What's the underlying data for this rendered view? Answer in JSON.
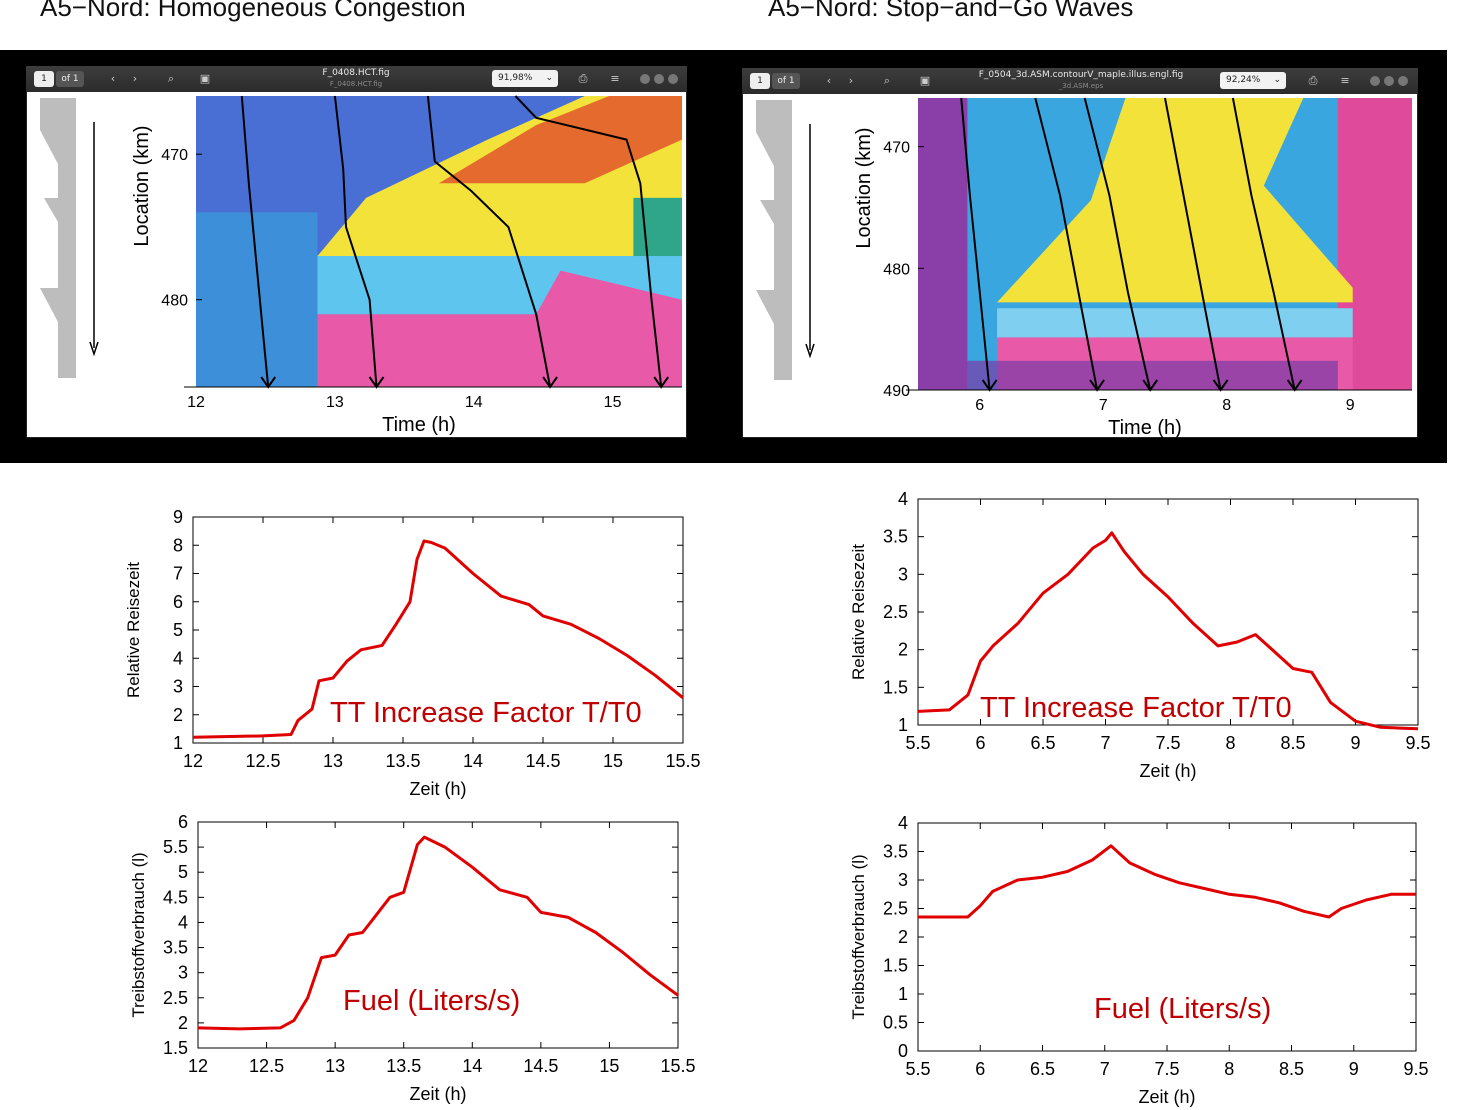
{
  "headings": {
    "left": "A5−Nord: Homogeneous Congestion",
    "right": "A5−Nord: Stop−and−Go Waves"
  },
  "viewer_left": {
    "page_field": "1",
    "page_of": "of 1",
    "filename": "F_0408.HCT.fig",
    "filename_sub": "F_0408.HCT.fig",
    "zoom": "91,98%",
    "icons": [
      "prev-icon",
      "next-icon",
      "search-icon",
      "save-icon",
      "print-icon",
      "menu-icon"
    ]
  },
  "viewer_right": {
    "page_field": "1",
    "page_of": "of 1",
    "filename": "F_0504_3d.ASM.contourV_maple.illus.engl.fig",
    "filename_sub": "_3d.ASM.eps",
    "zoom": "92,24%",
    "icons": [
      "prev-icon",
      "next-icon",
      "search-icon",
      "save-icon",
      "print-icon",
      "menu-icon"
    ]
  },
  "colors": {
    "curve": "#e00000",
    "annotation": "#c00000",
    "band": "#000000"
  },
  "chart_data": [
    {
      "id": "heatmap-homogeneous",
      "type": "heatmap",
      "title": "",
      "xlabel": "Time (h)",
      "ylabel": "Location (km)",
      "xlim": [
        12,
        15.5
      ],
      "ylim": [
        466,
        486
      ],
      "xticks": [
        "12",
        "13",
        "14",
        "15"
      ],
      "yticks": [
        "470",
        "480"
      ],
      "trajectories": [
        {
          "name": "",
          "x": [
            12.33,
            12.38,
            12.44,
            12.49,
            12.52
          ],
          "y": [
            466,
            472,
            478,
            483,
            486
          ]
        },
        {
          "name": "",
          "x": [
            13.0,
            13.06,
            13.08,
            13.25,
            13.3
          ],
          "y": [
            466,
            471,
            475,
            480,
            486
          ]
        },
        {
          "name": "",
          "x": [
            13.67,
            13.72,
            13.98,
            14.25,
            14.45,
            14.55
          ],
          "y": [
            466,
            470.5,
            472.5,
            475,
            481,
            486
          ]
        },
        {
          "name": "",
          "x": [
            14.3,
            14.45,
            15.1,
            15.2,
            15.28,
            15.35
          ],
          "y": [
            466,
            467.5,
            469,
            472,
            480,
            486
          ]
        }
      ]
    },
    {
      "id": "heatmap-stopgo",
      "type": "heatmap",
      "title": "",
      "xlabel": "Time (h)",
      "ylabel": "Location (km)",
      "xlim": [
        5.5,
        9.5
      ],
      "ylim": [
        466,
        490
      ],
      "xticks": [
        "6",
        "7",
        "8",
        "9"
      ],
      "yticks": [
        "470",
        "480",
        "490"
      ],
      "trajectories": [
        {
          "name": "",
          "x": [
            5.85,
            5.92,
            6.0,
            6.08
          ],
          "y": [
            466,
            474,
            482,
            490
          ]
        },
        {
          "name": "",
          "x": [
            6.45,
            6.65,
            6.8,
            6.95
          ],
          "y": [
            466,
            474,
            482,
            490
          ]
        },
        {
          "name": "",
          "x": [
            6.85,
            7.05,
            7.2,
            7.38
          ],
          "y": [
            466,
            474,
            482,
            490
          ]
        },
        {
          "name": "",
          "x": [
            7.5,
            7.65,
            7.8,
            7.95
          ],
          "y": [
            466,
            474,
            482,
            490
          ]
        },
        {
          "name": "",
          "x": [
            8.05,
            8.2,
            8.38,
            8.55
          ],
          "y": [
            466,
            474,
            482,
            490
          ]
        }
      ]
    },
    {
      "id": "tt-homogeneous",
      "type": "line",
      "title": "",
      "xlabel": "Zeit (h)",
      "ylabel": "Relative Reisezeit",
      "annotation": "TT Increase Factor T/T0",
      "xlim": [
        12,
        15.5
      ],
      "ylim": [
        1,
        9
      ],
      "xticks": [
        "12",
        "12.5",
        "13",
        "13.5",
        "14",
        "14.5",
        "15",
        "15.5"
      ],
      "yticks": [
        "1",
        "2",
        "3",
        "4",
        "5",
        "6",
        "7",
        "8",
        "9"
      ],
      "x": [
        12.0,
        12.5,
        12.7,
        12.75,
        12.85,
        12.9,
        13.0,
        13.1,
        13.2,
        13.35,
        13.45,
        13.55,
        13.6,
        13.65,
        13.7,
        13.8,
        14.0,
        14.2,
        14.4,
        14.5,
        14.7,
        14.9,
        15.1,
        15.3,
        15.5
      ],
      "y": [
        1.2,
        1.25,
        1.3,
        1.8,
        2.2,
        3.2,
        3.3,
        3.9,
        4.3,
        4.45,
        5.2,
        6.0,
        7.5,
        8.15,
        8.1,
        7.9,
        7.0,
        6.2,
        5.9,
        5.5,
        5.2,
        4.7,
        4.1,
        3.4,
        2.6
      ]
    },
    {
      "id": "tt-stopgo",
      "type": "line",
      "title": "",
      "xlabel": "Zeit (h)",
      "ylabel": "Relative Reisezeit",
      "annotation": "TT Increase Factor T/T0",
      "xlim": [
        5.5,
        9.5
      ],
      "ylim": [
        1,
        4
      ],
      "xticks": [
        "5.5",
        "6",
        "6.5",
        "7",
        "7.5",
        "8",
        "8.5",
        "9",
        "9.5"
      ],
      "yticks": [
        "1",
        "1.5",
        "2",
        "2.5",
        "3",
        "3.5",
        "4"
      ],
      "x": [
        5.5,
        5.75,
        5.9,
        6.0,
        6.1,
        6.3,
        6.5,
        6.7,
        6.9,
        7.0,
        7.05,
        7.15,
        7.3,
        7.5,
        7.7,
        7.9,
        8.05,
        8.2,
        8.3,
        8.5,
        8.65,
        8.8,
        9.0,
        9.2,
        9.5
      ],
      "y": [
        1.18,
        1.2,
        1.4,
        1.85,
        2.05,
        2.35,
        2.75,
        3.0,
        3.35,
        3.45,
        3.55,
        3.3,
        3.0,
        2.7,
        2.35,
        2.05,
        2.1,
        2.2,
        2.05,
        1.75,
        1.7,
        1.3,
        1.05,
        0.97,
        0.95
      ]
    },
    {
      "id": "fuel-homogeneous",
      "type": "line",
      "title": "",
      "xlabel": "Zeit (h)",
      "ylabel": "Treibstoffverbrauch (l)",
      "annotation": "Fuel (Liters/s)",
      "xlim": [
        12,
        15.5
      ],
      "ylim": [
        1.5,
        6
      ],
      "xticks": [
        "12",
        "12.5",
        "13",
        "13.5",
        "14",
        "14.5",
        "15",
        "15.5"
      ],
      "yticks": [
        "1.5",
        "2",
        "2.5",
        "3",
        "3.5",
        "4",
        "4.5",
        "5",
        "5.5",
        "6"
      ],
      "x": [
        12.0,
        12.3,
        12.6,
        12.7,
        12.8,
        12.9,
        13.0,
        13.1,
        13.2,
        13.3,
        13.4,
        13.5,
        13.6,
        13.65,
        13.8,
        14.0,
        14.2,
        14.4,
        14.5,
        14.7,
        14.9,
        15.1,
        15.3,
        15.5
      ],
      "y": [
        1.9,
        1.88,
        1.9,
        2.05,
        2.5,
        3.3,
        3.35,
        3.75,
        3.8,
        4.15,
        4.5,
        4.6,
        5.55,
        5.7,
        5.5,
        5.1,
        4.65,
        4.5,
        4.2,
        4.1,
        3.8,
        3.4,
        2.95,
        2.55
      ]
    },
    {
      "id": "fuel-stopgo",
      "type": "line",
      "title": "",
      "xlabel": "Zeit (h)",
      "ylabel": "Treibstoffverbrauch (l)",
      "annotation": "Fuel (Liters/s)",
      "xlim": [
        5.5,
        9.5
      ],
      "ylim": [
        0,
        4
      ],
      "xticks": [
        "5.5",
        "6",
        "6.5",
        "7",
        "7.5",
        "8",
        "8.5",
        "9",
        "9.5"
      ],
      "yticks": [
        "0",
        "0.5",
        "1",
        "1.5",
        "2",
        "2.5",
        "3",
        "3.5",
        "4"
      ],
      "x": [
        5.5,
        5.9,
        6.0,
        6.1,
        6.3,
        6.5,
        6.7,
        6.9,
        7.05,
        7.2,
        7.4,
        7.6,
        7.8,
        8.0,
        8.2,
        8.4,
        8.6,
        8.8,
        8.9,
        9.1,
        9.3,
        9.5
      ],
      "y": [
        2.35,
        2.35,
        2.55,
        2.8,
        3.0,
        3.05,
        3.15,
        3.35,
        3.6,
        3.3,
        3.1,
        2.95,
        2.85,
        2.75,
        2.7,
        2.6,
        2.45,
        2.35,
        2.5,
        2.65,
        2.75,
        2.75
      ]
    }
  ]
}
